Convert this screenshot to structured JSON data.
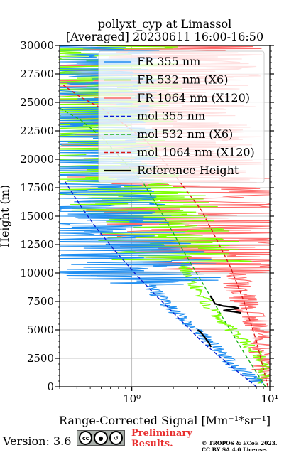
{
  "chart_data": {
    "type": "line",
    "title_line1": "pollyxt_cyp at Limassol",
    "title_line2": "[Averaged] 20230611 16:00-16:50",
    "ylabel": "Height (m)",
    "xlabel": "Range-Corrected Signal [Mm⁻¹*sr⁻¹]",
    "x_scale": "log",
    "xlim": [
      0.3,
      10
    ],
    "ylim": [
      0,
      30000
    ],
    "x_ticks": [
      1,
      10
    ],
    "x_tick_labels": [
      "10⁰",
      "10¹"
    ],
    "y_ticks": [
      0,
      2500,
      5000,
      7500,
      10000,
      12500,
      15000,
      17500,
      20000,
      22500,
      25000,
      27500,
      30000
    ],
    "y_tick_labels": [
      "0",
      "2500",
      "5000",
      "7500",
      "10000",
      "12500",
      "15000",
      "17500",
      "20000",
      "22500",
      "25000",
      "27500",
      "30000"
    ],
    "grid": true,
    "legend_position": "top-right",
    "series": [
      {
        "name": "FR 355 nm",
        "color": "#1f8ef1",
        "style": "solid",
        "x": [
          8.5,
          6.0,
          4.5,
          3.5,
          2.9,
          2.3,
          1.9,
          1.55,
          1.2,
          0.95,
          0.75,
          0.6,
          0.5,
          0.42,
          0.36,
          0.32
        ],
        "y": [
          300,
          1500,
          3000,
          4000,
          5000,
          6000,
          7000,
          8000,
          9500,
          11000,
          12500,
          14000,
          16000,
          18000,
          21000,
          25000
        ]
      },
      {
        "name": "FR 532 nm (X6)",
        "color": "#7cff00",
        "style": "solid",
        "x": [
          9.0,
          9.3,
          8.0,
          6.5,
          5.3,
          4.4,
          3.7,
          3.2,
          2.7,
          2.3,
          1.95,
          1.6,
          1.3,
          0.95,
          0.6,
          0.35
        ],
        "y": [
          300,
          2000,
          3000,
          4000,
          5000,
          6000,
          7000,
          8000,
          9500,
          11000,
          12500,
          14000,
          15500,
          17000,
          19500,
          24000
        ]
      },
      {
        "name": "FR 1064 nm (X120)",
        "color": "#ff6a6a",
        "style": "solid",
        "x": [
          9.5,
          9.0,
          8.5,
          8.0,
          7.0,
          6.0,
          5.5,
          4.5,
          4.0,
          3.5,
          3.0,
          2.5,
          2.0,
          1.6,
          1.2
        ],
        "y": [
          500,
          2500,
          4000,
          5500,
          7000,
          8500,
          10000,
          11500,
          13000,
          14500,
          16000,
          17500,
          19000,
          21000,
          23500
        ]
      },
      {
        "name": "mol 355 nm",
        "color": "#0a1fd0",
        "style": "dashed",
        "x": [
          8.0,
          5.0,
          3.2,
          2.2,
          1.5,
          1.05,
          0.75,
          0.55,
          0.42,
          0.33
        ],
        "y": [
          0,
          2000,
          4000,
          6000,
          8000,
          10000,
          12000,
          14000,
          16000,
          18000
        ]
      },
      {
        "name": "mol 532 nm (X6)",
        "color": "#1cb11c",
        "style": "dashed",
        "x": [
          9.3,
          6.5,
          4.6,
          3.3,
          2.35,
          1.7,
          1.2,
          0.85,
          0.6,
          0.42,
          0.3
        ],
        "y": [
          0,
          3000,
          6000,
          9000,
          12000,
          15000,
          18000,
          20000,
          22000,
          23500,
          24500
        ]
      },
      {
        "name": "mol 1064 nm (X120)",
        "color": "#d81818",
        "style": "dashed",
        "x": [
          9.7,
          8.0,
          6.5,
          5.2,
          4.1,
          3.2,
          2.4,
          1.8,
          1.3,
          0.9,
          0.6,
          0.42,
          0.32
        ],
        "y": [
          0,
          4000,
          7500,
          10500,
          13000,
          15500,
          17500,
          19500,
          21500,
          23000,
          24500,
          25500,
          26500
        ]
      },
      {
        "name": "Reference Height",
        "color": "#000000",
        "style": "solid",
        "segments": [
          {
            "x": [
              3.0,
              3.15,
              3.3,
              3.45,
              3.6,
              3.75
            ],
            "y": [
              5000,
              4800,
              4500,
              4200,
              3900,
              3500
            ]
          },
          {
            "x": [
              3.7,
              3.85,
              4.0,
              4.6,
              5.5,
              6.0,
              5.2,
              4.6,
              5.5,
              6.2
            ],
            "y": [
              8000,
              7700,
              7300,
              7100,
              7000,
              6900,
              6800,
              6700,
              6600,
              6500
            ]
          }
        ]
      }
    ]
  },
  "footer": {
    "version": "Version: 3.6",
    "preliminary_line1": "Preliminary",
    "preliminary_line2": "Results.",
    "copyright_line1": "© TROPOS & ECoE 2023.",
    "copyright_line2": "CC BY SA 4.0 License.",
    "license_badge": "cc-by-sa-icon",
    "license_badge_text": "cc"
  }
}
